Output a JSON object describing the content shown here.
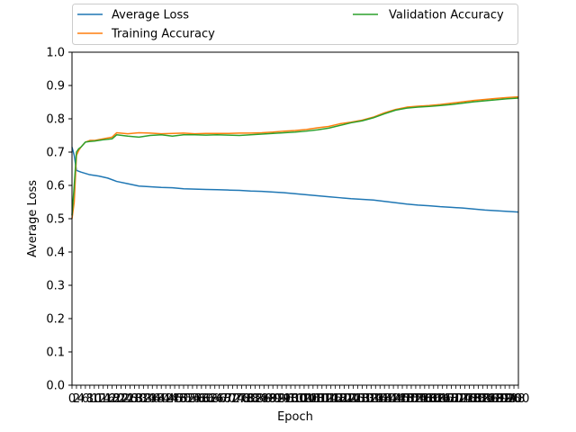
{
  "chart_data": {
    "type": "line",
    "title": "",
    "xlabel": "Epoch",
    "ylabel": "Average Loss",
    "xlim": [
      0,
      200
    ],
    "ylim": [
      0.0,
      1.0
    ],
    "yticks": [
      0.0,
      0.1,
      0.2,
      0.3,
      0.4,
      0.5,
      0.6,
      0.7,
      0.8,
      0.9,
      1.0
    ],
    "ytick_labels": [
      "0.0",
      "0.1",
      "0.2",
      "0.3",
      "0.4",
      "0.5",
      "0.6",
      "0.7",
      "0.8",
      "0.9",
      "1.0"
    ],
    "x_tick_step": 2,
    "x_tick_label_rendering": "overlapping integer epoch labels 0–200 (illegible)",
    "legend_position": "above plot, two columns",
    "grid": false,
    "series": [
      {
        "name": "Average Loss",
        "color": "#1f77b4",
        "x": [
          0,
          1,
          2,
          4,
          8,
          12,
          16,
          20,
          25,
          30,
          35,
          40,
          45,
          50,
          55,
          60,
          65,
          70,
          75,
          80,
          85,
          90,
          95,
          100,
          105,
          110,
          115,
          120,
          125,
          130,
          135,
          140,
          145,
          150,
          155,
          160,
          165,
          170,
          175,
          180,
          185,
          190,
          195,
          200
        ],
        "values": [
          0.715,
          0.69,
          0.645,
          0.64,
          0.632,
          0.628,
          0.622,
          0.612,
          0.605,
          0.598,
          0.596,
          0.594,
          0.593,
          0.59,
          0.589,
          0.588,
          0.587,
          0.586,
          0.585,
          0.583,
          0.582,
          0.58,
          0.578,
          0.575,
          0.572,
          0.569,
          0.566,
          0.563,
          0.56,
          0.558,
          0.556,
          0.552,
          0.548,
          0.544,
          0.541,
          0.539,
          0.536,
          0.534,
          0.532,
          0.529,
          0.526,
          0.524,
          0.522,
          0.52
        ]
      },
      {
        "name": "Training Accuracy",
        "color": "#ff7f0e",
        "x": [
          0,
          1,
          2,
          3,
          4,
          6,
          8,
          10,
          14,
          18,
          20,
          25,
          30,
          35,
          40,
          45,
          50,
          55,
          60,
          65,
          70,
          75,
          80,
          85,
          90,
          95,
          100,
          105,
          110,
          115,
          120,
          125,
          130,
          135,
          140,
          145,
          150,
          155,
          160,
          165,
          170,
          175,
          180,
          185,
          190,
          195,
          200
        ],
        "values": [
          0.5,
          0.55,
          0.69,
          0.705,
          0.715,
          0.73,
          0.735,
          0.735,
          0.74,
          0.745,
          0.758,
          0.755,
          0.758,
          0.757,
          0.755,
          0.756,
          0.757,
          0.755,
          0.756,
          0.756,
          0.756,
          0.757,
          0.757,
          0.758,
          0.76,
          0.763,
          0.765,
          0.768,
          0.773,
          0.777,
          0.785,
          0.79,
          0.796,
          0.805,
          0.818,
          0.828,
          0.835,
          0.838,
          0.84,
          0.843,
          0.847,
          0.851,
          0.855,
          0.858,
          0.861,
          0.864,
          0.866
        ]
      },
      {
        "name": "Validation Accuracy",
        "color": "#2ca02c",
        "x": [
          0,
          1,
          2,
          3,
          4,
          6,
          8,
          10,
          14,
          18,
          20,
          25,
          30,
          35,
          40,
          45,
          50,
          55,
          60,
          65,
          70,
          75,
          80,
          85,
          90,
          95,
          100,
          105,
          110,
          115,
          120,
          125,
          130,
          135,
          140,
          145,
          150,
          155,
          160,
          165,
          170,
          175,
          180,
          185,
          190,
          195,
          200
        ],
        "values": [
          0.51,
          0.6,
          0.7,
          0.71,
          0.715,
          0.73,
          0.732,
          0.733,
          0.737,
          0.74,
          0.752,
          0.748,
          0.745,
          0.75,
          0.752,
          0.748,
          0.752,
          0.752,
          0.751,
          0.752,
          0.751,
          0.75,
          0.752,
          0.754,
          0.756,
          0.758,
          0.76,
          0.763,
          0.767,
          0.772,
          0.78,
          0.788,
          0.794,
          0.803,
          0.815,
          0.826,
          0.832,
          0.835,
          0.837,
          0.84,
          0.843,
          0.847,
          0.851,
          0.854,
          0.857,
          0.86,
          0.862
        ]
      }
    ]
  }
}
